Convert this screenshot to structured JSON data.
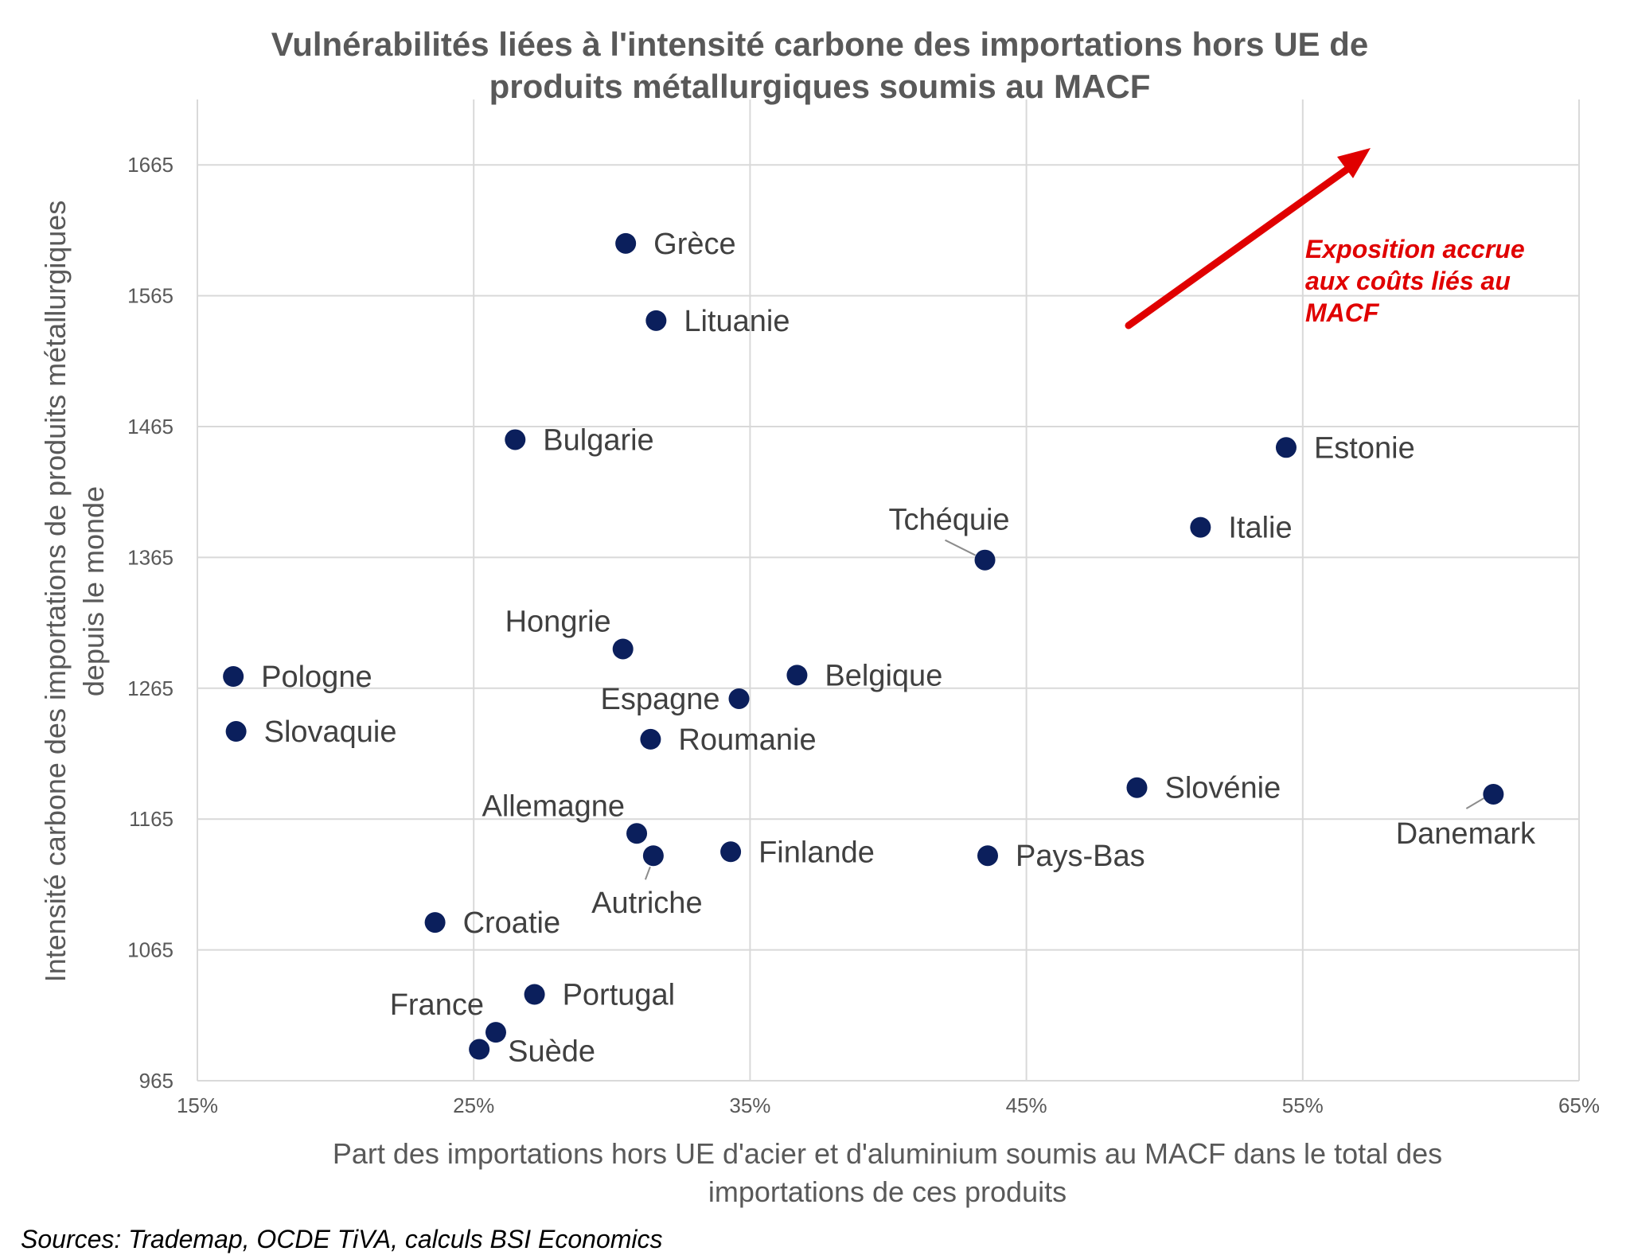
{
  "chart_data": {
    "type": "scatter",
    "title_lines": [
      "Vulnérabilités liées à l'intensité carbone des importations hors UE de",
      "produits métallurgiques soumis au MACF"
    ],
    "xlabel_lines": [
      "Part des importations hors UE d'acier et d'aluminium soumis au MACF dans le total des",
      "importations de ces produits"
    ],
    "ylabel_lines": [
      "Intensité carbone des importations de produits métallurgiques",
      "depuis le monde"
    ],
    "xlim": [
      15,
      65
    ],
    "ylim": [
      965,
      1715
    ],
    "x_ticks": [
      15,
      25,
      35,
      45,
      55,
      65
    ],
    "x_tick_labels": [
      "15%",
      "25%",
      "35%",
      "45%",
      "55%",
      "65%"
    ],
    "y_ticks": [
      965,
      1065,
      1165,
      1265,
      1365,
      1465,
      1565,
      1665
    ],
    "y_tick_labels": [
      "965",
      "1065",
      "1165",
      "1265",
      "1365",
      "1465",
      "1565",
      "1665"
    ],
    "grid": true,
    "marker_color": "#0b1f5c",
    "points": [
      {
        "label": "Grèce",
        "x": 30.5,
        "y": 1605,
        "pos": "right"
      },
      {
        "label": "Lituanie",
        "x": 31.6,
        "y": 1546,
        "pos": "right"
      },
      {
        "label": "Bulgarie",
        "x": 26.5,
        "y": 1455,
        "pos": "right"
      },
      {
        "label": "Estonie",
        "x": 54.4,
        "y": 1449,
        "pos": "right"
      },
      {
        "label": "Italie",
        "x": 51.3,
        "y": 1388,
        "pos": "right"
      },
      {
        "label": "Tchéquie",
        "x": 43.5,
        "y": 1363,
        "pos": "above-left-leader"
      },
      {
        "label": "Hongrie",
        "x": 30.4,
        "y": 1295,
        "pos": "above-left"
      },
      {
        "label": "Pologne",
        "x": 16.3,
        "y": 1274,
        "pos": "right"
      },
      {
        "label": "Belgique",
        "x": 36.7,
        "y": 1275,
        "pos": "right"
      },
      {
        "label": "Espagne",
        "x": 34.6,
        "y": 1257,
        "pos": "left"
      },
      {
        "label": "Slovaquie",
        "x": 16.4,
        "y": 1232,
        "pos": "right"
      },
      {
        "label": "Roumanie",
        "x": 31.4,
        "y": 1226,
        "pos": "right"
      },
      {
        "label": "Slovénie",
        "x": 49.0,
        "y": 1189,
        "pos": "right"
      },
      {
        "label": "Danemark",
        "x": 61.9,
        "y": 1184,
        "pos": "below-left-leader"
      },
      {
        "label": "Allemagne",
        "x": 30.9,
        "y": 1154,
        "pos": "above-left"
      },
      {
        "label": "Autriche",
        "x": 31.5,
        "y": 1137,
        "pos": "below-leader"
      },
      {
        "label": "Finlande",
        "x": 34.3,
        "y": 1140,
        "pos": "right"
      },
      {
        "label": "Pays-Bas",
        "x": 43.6,
        "y": 1137,
        "pos": "right"
      },
      {
        "label": "Croatie",
        "x": 23.6,
        "y": 1086,
        "pos": "right"
      },
      {
        "label": "Portugal",
        "x": 27.2,
        "y": 1031,
        "pos": "right"
      },
      {
        "label": "France",
        "x": 25.8,
        "y": 1002,
        "pos": "above-left"
      },
      {
        "label": "Suède",
        "x": 25.2,
        "y": 989,
        "pos": "below-right"
      }
    ],
    "annotation": {
      "lines": [
        "Exposition accrue",
        "aux coûts liés au",
        "MACF"
      ],
      "color": "#e00000"
    }
  },
  "source_note": "Sources: Trademap, OCDE TiVA, calculs BSI Economics"
}
